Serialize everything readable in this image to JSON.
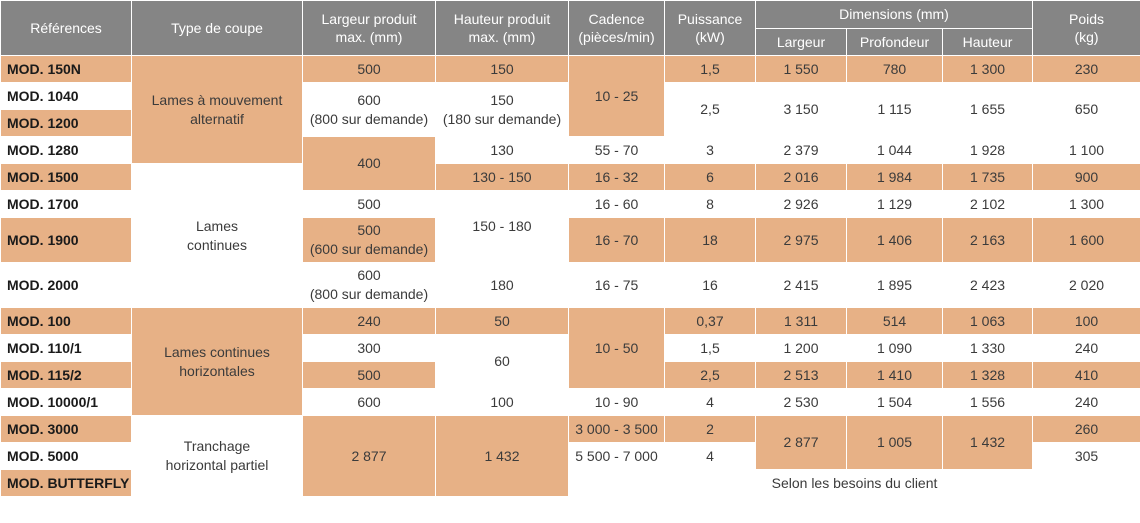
{
  "headers": {
    "references": "Références",
    "type": "Type de coupe",
    "largeur_l1": "Largeur produit",
    "largeur_l2": "max. (mm)",
    "hauteur_l1": "Hauteur produit",
    "hauteur_l2": "max. (mm)",
    "cadence_l1": "Cadence",
    "cadence_l2": "(pièces/min)",
    "puissance_l1": "Puissance",
    "puissance_l2": "(kW)",
    "dimensions": "Dimensions (mm)",
    "dim_largeur": "Largeur",
    "dim_profondeur": "Profondeur",
    "dim_hauteur": "Hauteur",
    "poids_l1": "Poids",
    "poids_l2": "(kg)"
  },
  "types": {
    "alternatif_l1": "Lames à mouvement",
    "alternatif_l2": "alternatif",
    "continues_l1": "Lames",
    "continues_l2": "continues",
    "horizontales_l1": "Lames continues",
    "horizontales_l2": "horizontales",
    "tranchage_l1": "Tranchage",
    "tranchage_l2": "horizontal partiel"
  },
  "refs": [
    "MOD. 150N",
    "MOD. 1040",
    "MOD. 1200",
    "MOD. 1280",
    "MOD. 1500",
    "MOD. 1700",
    "MOD. 1900",
    "MOD. 2000",
    "MOD. 100",
    "MOD. 110/1",
    "MOD. 115/2",
    "MOD. 10000/1",
    "MOD. 3000",
    "MOD. 5000",
    "MOD. BUTTERFLY"
  ],
  "largeur": {
    "m150n": "500",
    "m1040_a": "600",
    "m1040_b": "(800 sur demande)",
    "m1280": "400",
    "m1700": "500",
    "m1900_a": "500",
    "m1900_b": "(600 sur demande)",
    "m2000_a": "600",
    "m2000_b": "(800 sur demande)",
    "m100": "240",
    "m110": "300",
    "m115": "500",
    "m10000": "600",
    "m3000": "2 877"
  },
  "hauteur": {
    "m150n": "150",
    "m1040_a": "150",
    "m1040_b": "(180 sur demande)",
    "m1280": "130",
    "m1500": "130 - 150",
    "m1700": "150 - 180",
    "m2000": "180",
    "m100": "50",
    "m110": "60",
    "m10000": "100",
    "m3000": "1 432"
  },
  "cadence": {
    "m150n": "10 - 25",
    "m1280": "55 - 70",
    "m1500": "16 - 32",
    "m1700": "16 - 60",
    "m1900": "16 - 70",
    "m2000": "16 - 75",
    "m100": "10 - 50",
    "m10000": "10 - 90",
    "m3000": "3 000 - 3 500",
    "m5000": "5 500 - 7 000"
  },
  "puissance": {
    "m150n": "1,5",
    "m1040": "2,5",
    "m1280": "3",
    "m1500": "6",
    "m1700": "8",
    "m1900": "18",
    "m2000": "16",
    "m100": "0,37",
    "m110": "1,5",
    "m115": "2,5",
    "m10000": "4",
    "m3000": "2",
    "m5000": "4"
  },
  "dim": {
    "m150n": [
      "1 550",
      "780",
      "1 300"
    ],
    "m1040": [
      "3 150",
      "1 115",
      "1 655"
    ],
    "m1280": [
      "2 379",
      "1 044",
      "1 928"
    ],
    "m1500": [
      "2 016",
      "1 984",
      "1 735"
    ],
    "m1700": [
      "2 926",
      "1 129",
      "2 102"
    ],
    "m1900": [
      "2 975",
      "1 406",
      "2 163"
    ],
    "m2000": [
      "2 415",
      "1 895",
      "2 423"
    ],
    "m100": [
      "1 311",
      "514",
      "1 063"
    ],
    "m110": [
      "1 200",
      "1 090",
      "1 330"
    ],
    "m115": [
      "2 513",
      "1 410",
      "1 328"
    ],
    "m10000": [
      "2 530",
      "1 504",
      "1 556"
    ],
    "m3000": [
      "2 877",
      "1 005",
      "1 432"
    ]
  },
  "poids": {
    "m150n": "230",
    "m1040": "650",
    "m1280": "1 100",
    "m1500": "900",
    "m1700": "1 300",
    "m1900": "1 600",
    "m2000": "2 020",
    "m100": "100",
    "m110": "240",
    "m115": "410",
    "m10000": "240",
    "m3000": "260",
    "m5000": "305"
  },
  "butterfly_note": "Selon les besoins du client"
}
